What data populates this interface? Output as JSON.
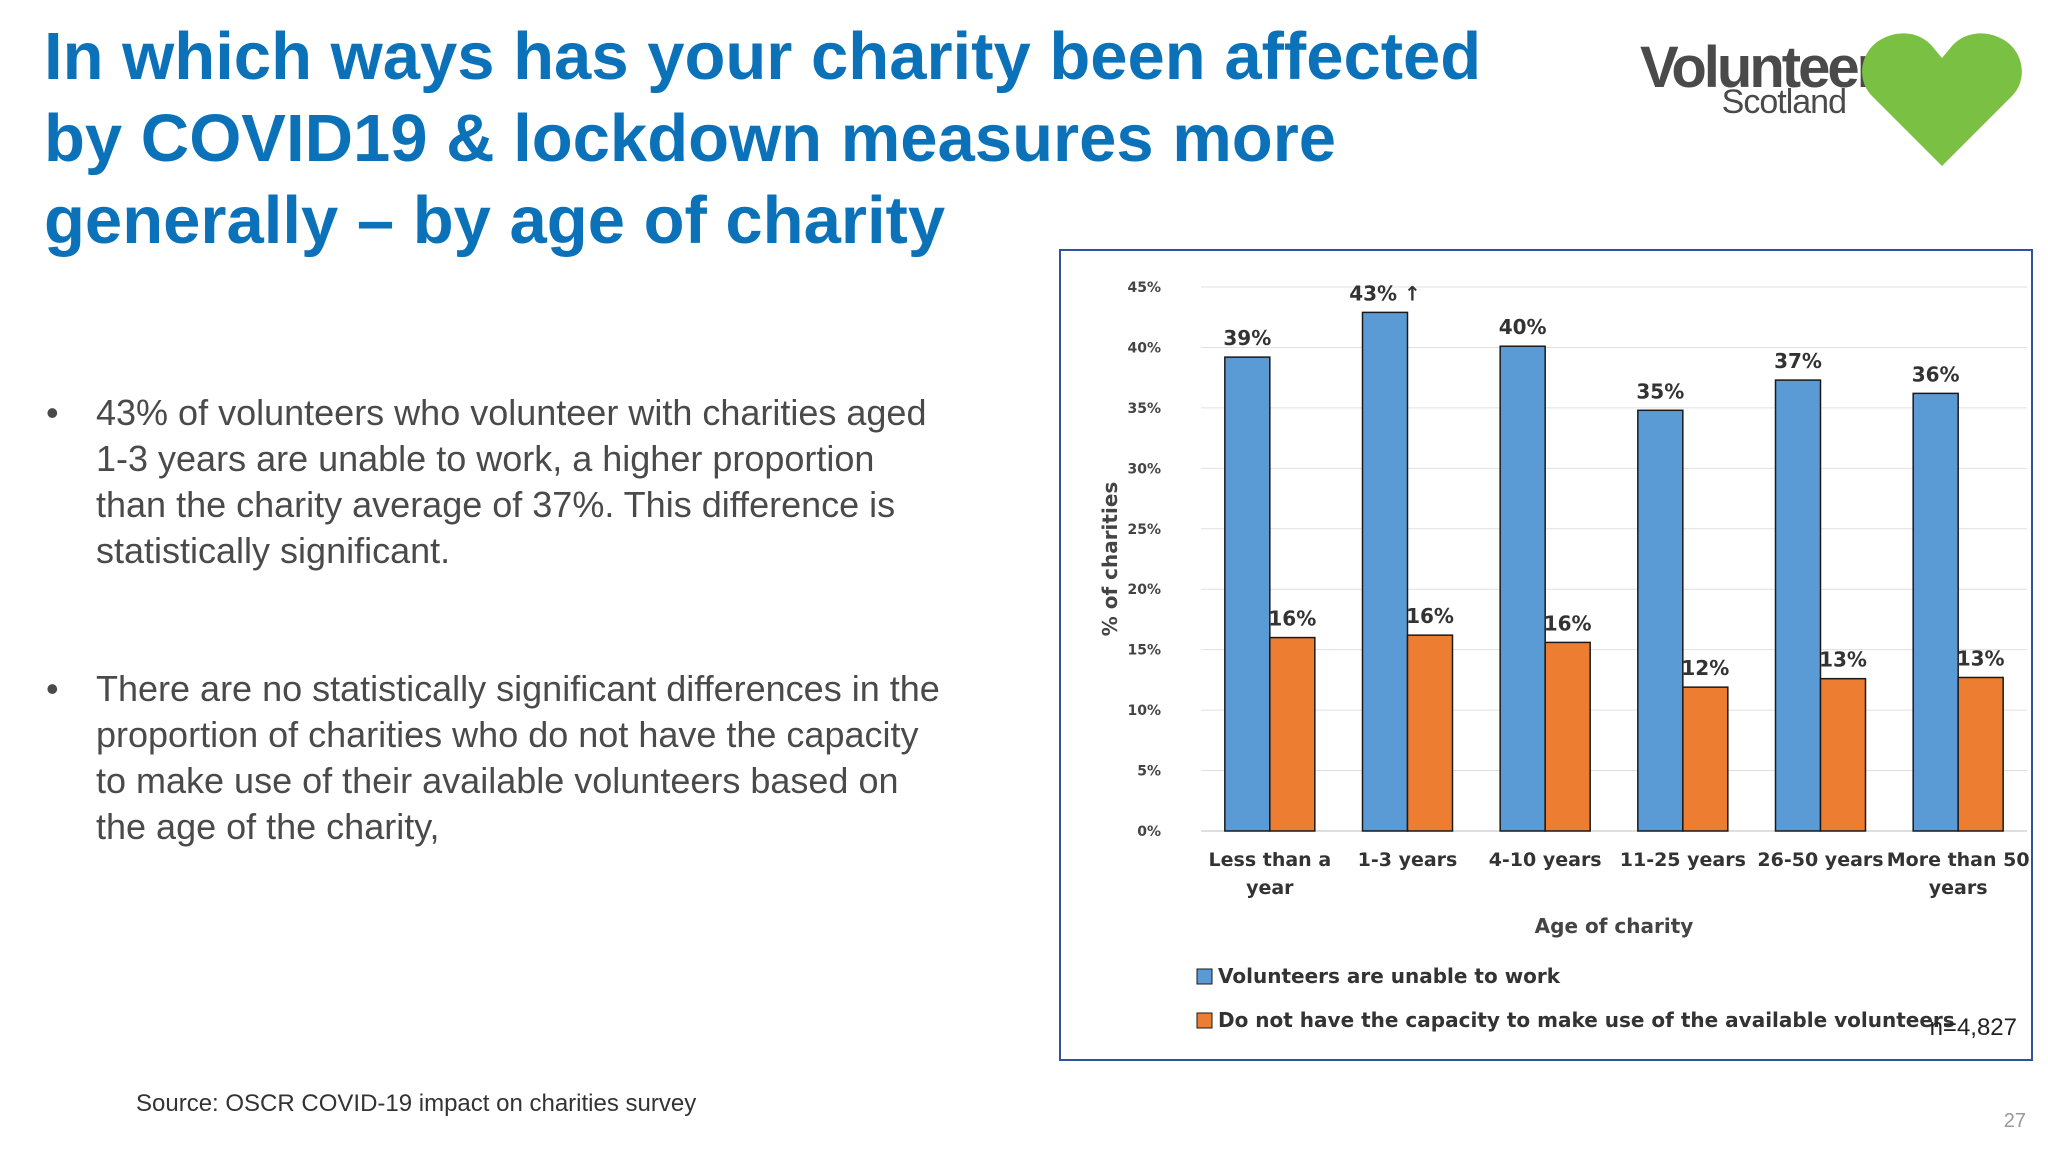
{
  "title": "In which ways has your charity been affected by COVID19 & lockdown measures more generally – by age of charity",
  "logo": {
    "word": "Volunteer",
    "sub": "Scotland",
    "icon": "heart-logo",
    "color": "#7ac143"
  },
  "bullets": [
    "43% of volunteers who volunteer with charities aged 1-3 years are unable to work, a higher proportion than the charity average of 37%. This difference is statistically significant.",
    "There are no statistically significant differences in the proportion of charities who do not have the capacity to make use of their available volunteers based on the age of the charity,"
  ],
  "bullet_symbol": "•",
  "source": "Source: OSCR COVID-19 impact on charities survey",
  "page_number": "27",
  "n_label": "n=4,827",
  "chart_data": {
    "type": "bar",
    "categories": [
      [
        "Less than a",
        "year"
      ],
      [
        "1-3 years"
      ],
      [
        "4-10 years"
      ],
      [
        "11-25 years"
      ],
      [
        "26-50 years"
      ],
      [
        "More than 50",
        "years"
      ]
    ],
    "series": [
      {
        "name": "Volunteers are unable to work",
        "color": "#5b9bd5",
        "values": [
          39.2,
          42.9,
          40.1,
          34.8,
          37.3,
          36.2
        ],
        "labels": [
          "39%",
          "43% ↑",
          "40%",
          "35%",
          "37%",
          "36%"
        ]
      },
      {
        "name": "Do not have the capacity to make use of the available volunteers",
        "color": "#ed7d31",
        "values": [
          16.0,
          16.2,
          15.6,
          11.9,
          12.6,
          12.7
        ],
        "labels": [
          "16%",
          "16%",
          "16%",
          "12%",
          "13%",
          "13%"
        ]
      }
    ],
    "xlabel": "Age of charity",
    "ylabel": "% of charities",
    "ylim": [
      0,
      45
    ],
    "yticks": [
      "0%",
      "5%",
      "10%",
      "15%",
      "20%",
      "25%",
      "30%",
      "35%",
      "40%",
      "45%"
    ],
    "grid": true,
    "legend": "bottom"
  }
}
